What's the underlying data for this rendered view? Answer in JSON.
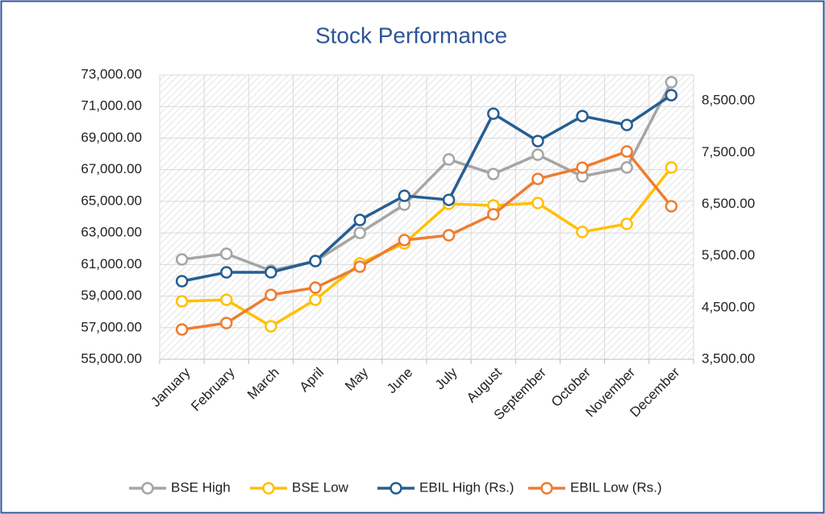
{
  "chart_data": {
    "type": "line",
    "title": "Stock Performance",
    "categories": [
      "January",
      "February",
      "March",
      "April",
      "May",
      "June",
      "July",
      "August",
      "September",
      "October",
      "November",
      "December"
    ],
    "series": [
      {
        "name": "BSE High",
        "color": "#a5a5a5",
        "values": [
          61320,
          61680,
          60610,
          61220,
          63000,
          64790,
          67650,
          66730,
          67950,
          66580,
          67140,
          72540
        ]
      },
      {
        "name": "BSE Low",
        "color": "#ffc000",
        "values": [
          58670,
          58770,
          57090,
          58770,
          61070,
          62340,
          64840,
          64740,
          64890,
          63060,
          63570,
          67140
        ]
      },
      {
        "name": "EBIL High (Rs.)",
        "color": "#255e91",
        "axis": "y2",
        "values": [
          5011,
          5182,
          5182,
          5400,
          6195,
          6662,
          6584,
          8251,
          7721,
          8204,
          8033,
          8609
        ]
      },
      {
        "name": "EBIL Low (Rs.)",
        "color": "#ed7d31",
        "axis": "y2",
        "values": [
          4076,
          4201,
          4746,
          4886,
          5291,
          5805,
          5899,
          6304,
          6989,
          7207,
          7519,
          6460
        ]
      }
    ],
    "ylim": [
      55000,
      73000
    ],
    "yticks": [
      {
        "value": 55000,
        "label": "55,000.00"
      },
      {
        "value": 57000,
        "label": "57,000.00"
      },
      {
        "value": 59000,
        "label": "59,000.00"
      },
      {
        "value": 61000,
        "label": "61,000.00"
      },
      {
        "value": 63000,
        "label": "63,000.00"
      },
      {
        "value": 65000,
        "label": "65,000.00"
      },
      {
        "value": 67000,
        "label": "67,000.00"
      },
      {
        "value": 69000,
        "label": "69,000.00"
      },
      {
        "value": 71000,
        "label": "71,000.00"
      },
      {
        "value": 73000,
        "label": "73,000.00"
      }
    ],
    "y2lim": [
      3500,
      9000
    ],
    "y2ticks": [
      {
        "value": 3500,
        "label": "3,500.00"
      },
      {
        "value": 4500,
        "label": "4,500.00"
      },
      {
        "value": 5500,
        "label": "5,500.00"
      },
      {
        "value": 6500,
        "label": "6,500.00"
      },
      {
        "value": 7500,
        "label": "7,500.00"
      },
      {
        "value": 8500,
        "label": "8,500.00"
      }
    ],
    "grid": true,
    "legend": "bottom"
  }
}
